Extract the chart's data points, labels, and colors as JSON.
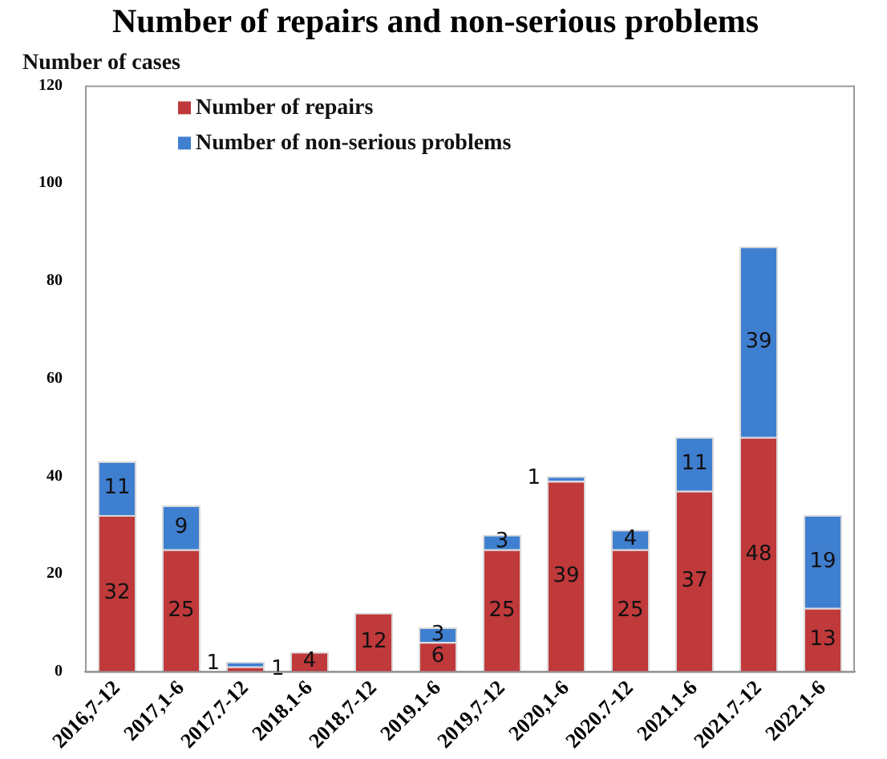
{
  "chart_data": {
    "type": "bar",
    "title": "Number of repairs and non-serious problems",
    "ylabel": "Number of cases",
    "stacked": true,
    "categories": [
      "2016,7-12",
      "2017,1-6",
      "2017.7-12",
      "2018.1-6",
      "2018.7-12",
      "2019.1-6",
      "2019,7-12",
      "2020,1-6",
      "2020.7-12",
      "2021.1-6",
      "2021.7-12",
      "2022.1-6"
    ],
    "series": [
      {
        "name": "Number of repairs",
        "color": "#c0393b",
        "values": [
          32,
          25,
          1,
          4,
          12,
          6,
          25,
          39,
          25,
          37,
          48,
          13
        ]
      },
      {
        "name": "Number of non-serious problems",
        "color": "#3f7fd0",
        "values": [
          11,
          9,
          1,
          null,
          null,
          3,
          3,
          1,
          4,
          11,
          39,
          19
        ]
      }
    ],
    "ylim": [
      0,
      120
    ],
    "yticks": [
      0,
      20,
      40,
      60,
      80,
      100,
      120
    ],
    "grid": false,
    "legend": "top left",
    "data_labels": true
  }
}
